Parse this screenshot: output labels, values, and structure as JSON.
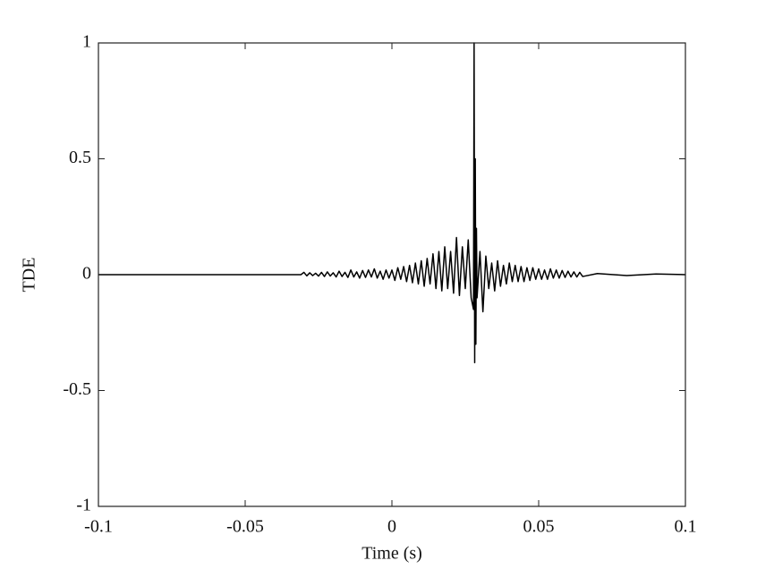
{
  "chart_data": {
    "type": "line",
    "x_label": "Time (s)",
    "y_label": "TDE",
    "xlim": [
      -0.1,
      0.1
    ],
    "ylim": [
      -1,
      1
    ],
    "xticks": [
      -0.1,
      -0.05,
      0,
      0.05,
      0.1
    ],
    "yticks": [
      -1,
      -0.5,
      0,
      0.5,
      1
    ],
    "grid": false,
    "series": [
      {
        "color": "#000000",
        "x": [
          -0.1,
          -0.05,
          -0.031,
          -0.03,
          -0.029,
          -0.028,
          -0.027,
          -0.026,
          -0.025,
          -0.024,
          -0.023,
          -0.022,
          -0.021,
          -0.02,
          -0.019,
          -0.018,
          -0.017,
          -0.016,
          -0.015,
          -0.014,
          -0.013,
          -0.012,
          -0.011,
          -0.01,
          -0.009,
          -0.008,
          -0.007,
          -0.006,
          -0.005,
          -0.004,
          -0.003,
          -0.002,
          -0.001,
          0,
          0.001,
          0.002,
          0.003,
          0.004,
          0.005,
          0.006,
          0.007,
          0.008,
          0.009,
          0.01,
          0.011,
          0.012,
          0.013,
          0.014,
          0.015,
          0.016,
          0.017,
          0.018,
          0.019,
          0.02,
          0.021,
          0.022,
          0.023,
          0.024,
          0.025,
          0.026,
          0.027,
          0.0278,
          0.028,
          0.0282,
          0.0284,
          0.0286,
          0.0288,
          0.029,
          0.03,
          0.031,
          0.032,
          0.033,
          0.034,
          0.035,
          0.036,
          0.037,
          0.038,
          0.039,
          0.04,
          0.041,
          0.042,
          0.043,
          0.044,
          0.045,
          0.046,
          0.047,
          0.048,
          0.049,
          0.05,
          0.051,
          0.052,
          0.053,
          0.054,
          0.055,
          0.056,
          0.057,
          0.058,
          0.059,
          0.06,
          0.061,
          0.062,
          0.063,
          0.064,
          0.065,
          0.07,
          0.08,
          0.09,
          0.1
        ],
        "values": [
          0,
          0,
          0,
          0.01,
          -0.005,
          0.008,
          -0.004,
          0.006,
          -0.006,
          0.01,
          -0.008,
          0.012,
          -0.006,
          0.008,
          -0.01,
          0.015,
          -0.008,
          0.01,
          -0.012,
          0.02,
          -0.01,
          0.012,
          -0.015,
          0.018,
          -0.012,
          0.02,
          -0.01,
          0.025,
          -0.015,
          0.015,
          -0.02,
          0.02,
          -0.015,
          0.02,
          -0.025,
          0.03,
          -0.02,
          0.035,
          -0.03,
          0.04,
          -0.035,
          0.05,
          -0.04,
          0.06,
          -0.05,
          0.07,
          -0.04,
          0.09,
          -0.06,
          0.1,
          -0.07,
          0.12,
          -0.06,
          0.1,
          -0.08,
          0.16,
          -0.09,
          0.12,
          -0.06,
          0.15,
          -0.1,
          -0.15,
          1,
          -0.38,
          0.5,
          -0.3,
          0.2,
          -0.1,
          0.1,
          -0.16,
          0.08,
          -0.06,
          0.05,
          -0.07,
          0.06,
          -0.05,
          0.04,
          -0.04,
          0.05,
          -0.03,
          0.04,
          -0.03,
          0.035,
          -0.03,
          0.03,
          -0.025,
          0.03,
          -0.02,
          0.025,
          -0.02,
          0.02,
          -0.02,
          0.025,
          -0.015,
          0.02,
          -0.015,
          0.018,
          -0.012,
          0.015,
          -0.01,
          0.012,
          -0.01,
          0.01,
          -0.008,
          0.005,
          -0.004,
          0.003,
          0
        ]
      }
    ]
  }
}
